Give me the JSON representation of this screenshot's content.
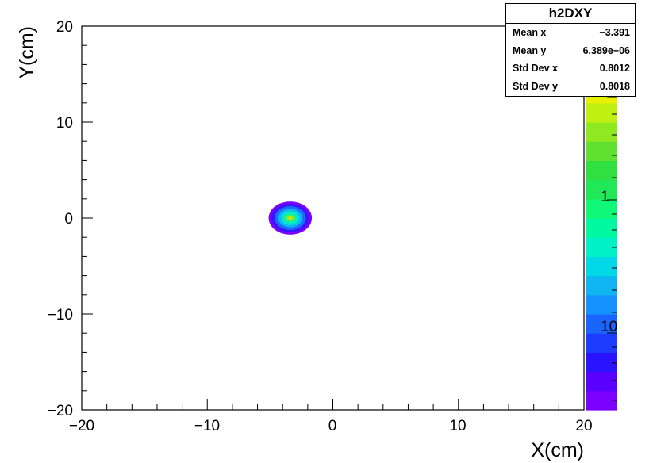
{
  "chart_data": {
    "type": "heatmap",
    "title": "",
    "xlabel": "X(cm)",
    "ylabel": "Y(cm)",
    "xlim": [
      -20,
      20
    ],
    "ylim": [
      -20,
      20
    ],
    "x_ticks": [
      "−20",
      "−10",
      "0",
      "10",
      "20"
    ],
    "y_ticks": [
      "−20",
      "−10",
      "0",
      "10",
      "20"
    ],
    "z_scale": "log",
    "z_tick_labels": [
      "10",
      "1",
      "10"
    ],
    "spot": {
      "center_x": -3.391,
      "center_y": 0.0,
      "std_x": 0.8012,
      "std_y": 0.8018
    },
    "palette": [
      "#7a00ff",
      "#5a00ff",
      "#2a14ff",
      "#1e3cff",
      "#1a64ff",
      "#1490ff",
      "#10b4f0",
      "#00d8e8",
      "#00f0c8",
      "#00f8a0",
      "#10f878",
      "#20e858",
      "#30e040",
      "#60e030",
      "#90e820",
      "#c0f010",
      "#e8f000",
      "#ffe600",
      "#ffcc00",
      "#ffaa00"
    ],
    "grid": false,
    "stats": {
      "title": "h2DXY",
      "rows": [
        {
          "label": "Mean x",
          "value": "−3.391"
        },
        {
          "label": "Mean y",
          "value": "6.389e−06"
        },
        {
          "label": "Std Dev x",
          "value": "0.8012"
        },
        {
          "label": "Std Dev y",
          "value": "0.8018"
        }
      ]
    }
  }
}
